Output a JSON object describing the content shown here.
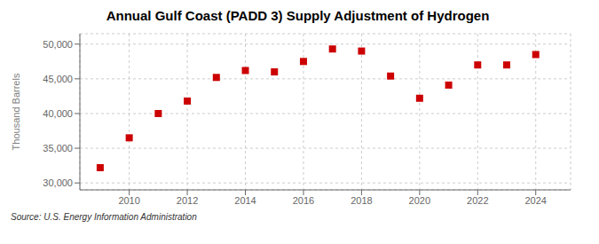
{
  "chart_data": {
    "type": "scatter",
    "title": "Annual Gulf Coast (PADD 3) Supply Adjustment of Hydrogen",
    "y_label": "Thousand Barrels",
    "annotations": [
      "Source: U.S. Energy Information Administration"
    ],
    "x": [
      2009,
      2010,
      2011,
      2012,
      2013,
      2014,
      2015,
      2016,
      2017,
      2018,
      2019,
      2020,
      2021,
      2022,
      2023,
      2024
    ],
    "values": [
      32200,
      36500,
      40000,
      41800,
      45200,
      46200,
      46000,
      47500,
      49300,
      49000,
      45400,
      42200,
      44100,
      47000,
      47000,
      48500
    ],
    "color": "#cc0000",
    "marker": "square",
    "grid": true,
    "xlim": [
      2008.3,
      2025.2
    ],
    "xticks": [
      2010,
      2012,
      2014,
      2016,
      2018,
      2020,
      2022,
      2024
    ],
    "ylim": [
      29000,
      51500
    ],
    "yticks": [
      {
        "value": 30000,
        "label": "30,000"
      },
      {
        "value": 35000,
        "label": "35,000"
      },
      {
        "value": 40000,
        "label": "40,000"
      },
      {
        "value": 45000,
        "label": "45,000"
      },
      {
        "value": 50000,
        "label": "50,000"
      }
    ]
  }
}
